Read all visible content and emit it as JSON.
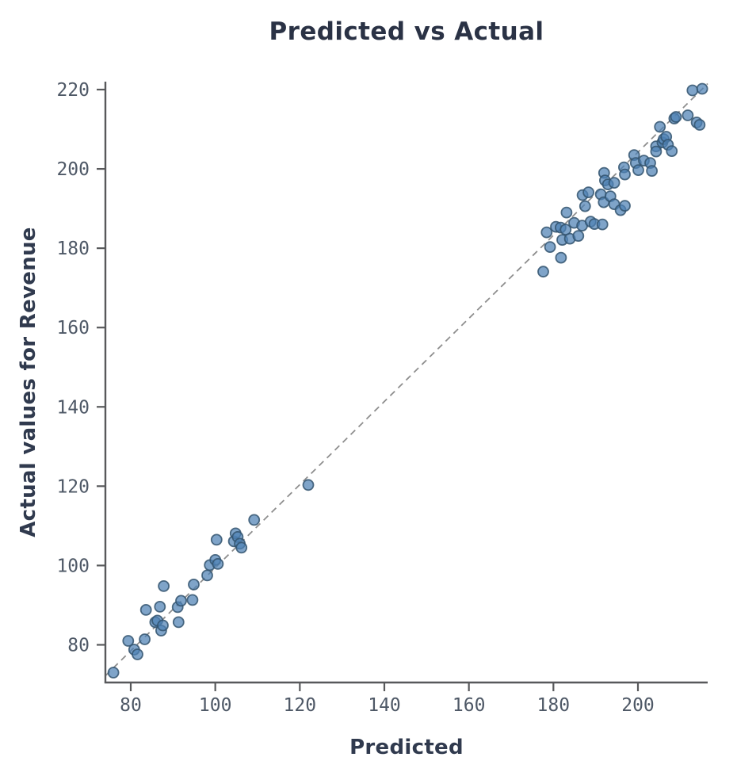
{
  "chart_data": {
    "type": "scatter",
    "title": "Predicted vs Actual",
    "xlabel": "Predicted",
    "ylabel": "Actual values for Revenue",
    "x_ticks": [
      80,
      100,
      120,
      140,
      160,
      180,
      200
    ],
    "y_ticks": [
      80,
      100,
      120,
      140,
      160,
      180,
      200,
      220
    ],
    "xlim": [
      74,
      216.5
    ],
    "ylim": [
      70.5,
      222
    ],
    "grid": false,
    "legend": null,
    "marker": {
      "shape": "circle",
      "radius": 6.5,
      "fill": "#4d81b4",
      "fill_opacity": 0.72,
      "stroke": "#33536f",
      "stroke_opacity": 0.85,
      "stroke_width": 1.8
    },
    "trendline": {
      "style": "dashed",
      "color": "#8e8e8e",
      "width": 1.8,
      "dash": "8 6",
      "x1": 74,
      "y1": 72.2,
      "x2": 216.5,
      "y2": 221.5
    },
    "axis": {
      "spine_color": "#58595b",
      "spine_width": 2.4,
      "tick_length": 11,
      "tick_label_color": "#4e5866",
      "tick_label_size": 23
    },
    "points": [
      [
        75.9,
        73.0
      ],
      [
        79.4,
        81.0
      ],
      [
        80.8,
        78.8
      ],
      [
        81.6,
        77.6
      ],
      [
        83.3,
        81.4
      ],
      [
        83.6,
        88.8
      ],
      [
        85.8,
        85.7
      ],
      [
        86.3,
        86.1
      ],
      [
        86.9,
        89.6
      ],
      [
        87.2,
        83.6
      ],
      [
        87.6,
        84.9
      ],
      [
        87.8,
        94.8
      ],
      [
        91.1,
        89.5
      ],
      [
        91.3,
        85.7
      ],
      [
        91.9,
        91.1
      ],
      [
        94.6,
        91.3
      ],
      [
        94.9,
        95.2
      ],
      [
        98.1,
        97.5
      ],
      [
        98.7,
        100.1
      ],
      [
        100.0,
        101.4
      ],
      [
        100.6,
        100.4
      ],
      [
        100.3,
        106.5
      ],
      [
        104.4,
        106.1
      ],
      [
        104.8,
        108.1
      ],
      [
        105.3,
        107.2
      ],
      [
        105.8,
        105.5
      ],
      [
        106.2,
        104.5
      ],
      [
        109.2,
        111.5
      ],
      [
        122.0,
        120.3
      ],
      [
        177.6,
        174.1
      ],
      [
        178.4,
        184.0
      ],
      [
        179.2,
        180.3
      ],
      [
        180.6,
        185.4
      ],
      [
        181.7,
        185.2
      ],
      [
        181.8,
        177.6
      ],
      [
        182.1,
        182.1
      ],
      [
        183.9,
        182.4
      ],
      [
        182.9,
        184.7
      ],
      [
        183.1,
        189.0
      ],
      [
        184.9,
        186.4
      ],
      [
        185.9,
        183.1
      ],
      [
        186.8,
        185.7
      ],
      [
        186.9,
        193.4
      ],
      [
        187.5,
        190.6
      ],
      [
        188.3,
        194.1
      ],
      [
        188.8,
        186.7
      ],
      [
        189.7,
        186.1
      ],
      [
        191.2,
        193.6
      ],
      [
        191.6,
        186.0
      ],
      [
        191.9,
        191.6
      ],
      [
        192.0,
        199.0
      ],
      [
        192.2,
        197.1
      ],
      [
        192.9,
        196.1
      ],
      [
        193.5,
        193.1
      ],
      [
        194.4,
        196.5
      ],
      [
        194.4,
        191.1
      ],
      [
        195.9,
        189.6
      ],
      [
        196.9,
        190.7
      ],
      [
        196.7,
        200.4
      ],
      [
        196.9,
        198.6
      ],
      [
        199.1,
        203.5
      ],
      [
        199.5,
        201.5
      ],
      [
        200.1,
        199.7
      ],
      [
        201.4,
        202.1
      ],
      [
        202.9,
        201.5
      ],
      [
        203.3,
        199.5
      ],
      [
        204.3,
        205.7
      ],
      [
        204.3,
        204.4
      ],
      [
        205.2,
        210.6
      ],
      [
        205.8,
        206.7
      ],
      [
        206.1,
        207.5
      ],
      [
        206.7,
        208.1
      ],
      [
        207.1,
        206.1
      ],
      [
        208.0,
        204.5
      ],
      [
        208.6,
        212.7
      ],
      [
        209.0,
        213.1
      ],
      [
        211.8,
        213.5
      ],
      [
        212.9,
        219.8
      ],
      [
        213.9,
        211.7
      ],
      [
        214.6,
        211.1
      ],
      [
        215.2,
        220.2
      ]
    ]
  }
}
